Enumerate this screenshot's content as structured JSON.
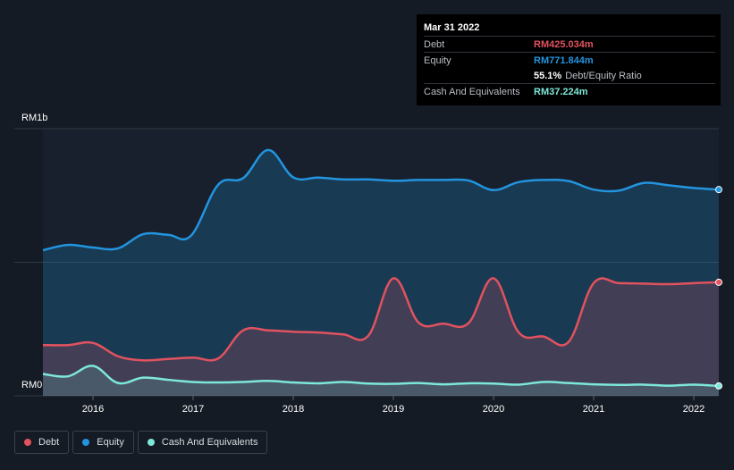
{
  "tooltip": {
    "date": "Mar 31 2022",
    "rows": [
      {
        "label": "Debt",
        "value": "RM425.034m",
        "color": "#e2525f"
      },
      {
        "label": "Equity",
        "value": "RM771.844m",
        "color": "#2394df"
      },
      {
        "label": "",
        "value": "",
        "color": ""
      },
      {
        "label": "Cash And Equivalents",
        "value": "RM37.224m",
        "color": "#7ee8d8"
      }
    ],
    "ratio_value": "55.1%",
    "ratio_label": "Debt/Equity Ratio"
  },
  "legend": [
    {
      "label": "Debt",
      "color": "#e2525f"
    },
    {
      "label": "Equity",
      "color": "#2394df"
    },
    {
      "label": "Cash And Equivalents",
      "color": "#7ee8d8"
    }
  ],
  "chart_data": {
    "type": "area",
    "y_tick_labels": {
      "top": "RM1b",
      "bottom": "RM0"
    },
    "ylim": [
      0,
      1000
    ],
    "xlim": [
      2015.5,
      2022.25
    ],
    "x_ticks": [
      2016,
      2017,
      2018,
      2019,
      2020,
      2021,
      2022
    ],
    "grid": true,
    "legend_position": "bottom-left",
    "series": [
      {
        "name": "Equity",
        "color": "#2394df",
        "points": [
          [
            2015.5,
            545
          ],
          [
            2015.75,
            565
          ],
          [
            2016.0,
            555
          ],
          [
            2016.25,
            552
          ],
          [
            2016.5,
            605
          ],
          [
            2016.75,
            603
          ],
          [
            2016.98,
            600
          ],
          [
            2017.25,
            790
          ],
          [
            2017.5,
            815
          ],
          [
            2017.75,
            920
          ],
          [
            2018.0,
            818
          ],
          [
            2018.25,
            817
          ],
          [
            2018.5,
            810
          ],
          [
            2018.75,
            810
          ],
          [
            2019.0,
            805
          ],
          [
            2019.25,
            808
          ],
          [
            2019.5,
            808
          ],
          [
            2019.75,
            806
          ],
          [
            2020.0,
            770
          ],
          [
            2020.25,
            800
          ],
          [
            2020.5,
            808
          ],
          [
            2020.75,
            804
          ],
          [
            2021.0,
            772
          ],
          [
            2021.25,
            768
          ],
          [
            2021.5,
            797
          ],
          [
            2021.75,
            788
          ],
          [
            2022.0,
            778
          ],
          [
            2022.25,
            772
          ]
        ]
      },
      {
        "name": "Debt",
        "color": "#e2525f",
        "points": [
          [
            2015.5,
            190
          ],
          [
            2015.75,
            190
          ],
          [
            2016.0,
            198
          ],
          [
            2016.25,
            148
          ],
          [
            2016.5,
            133
          ],
          [
            2016.75,
            138
          ],
          [
            2017.0,
            143
          ],
          [
            2017.25,
            140
          ],
          [
            2017.5,
            245
          ],
          [
            2017.75,
            245
          ],
          [
            2018.0,
            240
          ],
          [
            2018.25,
            237
          ],
          [
            2018.5,
            230
          ],
          [
            2018.75,
            225
          ],
          [
            2019.0,
            440
          ],
          [
            2019.25,
            275
          ],
          [
            2019.5,
            270
          ],
          [
            2019.75,
            272
          ],
          [
            2020.0,
            440
          ],
          [
            2020.25,
            238
          ],
          [
            2020.5,
            222
          ],
          [
            2020.75,
            202
          ],
          [
            2021.0,
            422
          ],
          [
            2021.25,
            422
          ],
          [
            2021.5,
            420
          ],
          [
            2021.75,
            418
          ],
          [
            2022.0,
            422
          ],
          [
            2022.25,
            425
          ]
        ]
      },
      {
        "name": "Cash And Equivalents",
        "color": "#7ee8d8",
        "points": [
          [
            2015.5,
            82
          ],
          [
            2015.75,
            73
          ],
          [
            2016.0,
            112
          ],
          [
            2016.25,
            48
          ],
          [
            2016.5,
            68
          ],
          [
            2016.75,
            60
          ],
          [
            2017.0,
            52
          ],
          [
            2017.25,
            50
          ],
          [
            2017.5,
            52
          ],
          [
            2017.75,
            56
          ],
          [
            2018.0,
            50
          ],
          [
            2018.25,
            47
          ],
          [
            2018.5,
            52
          ],
          [
            2018.75,
            46
          ],
          [
            2019.0,
            45
          ],
          [
            2019.25,
            48
          ],
          [
            2019.5,
            43
          ],
          [
            2019.75,
            47
          ],
          [
            2020.0,
            46
          ],
          [
            2020.25,
            42
          ],
          [
            2020.5,
            52
          ],
          [
            2020.75,
            48
          ],
          [
            2021.0,
            43
          ],
          [
            2021.25,
            41
          ],
          [
            2021.5,
            42
          ],
          [
            2021.75,
            38
          ],
          [
            2022.0,
            42
          ],
          [
            2022.25,
            37
          ]
        ]
      }
    ]
  }
}
